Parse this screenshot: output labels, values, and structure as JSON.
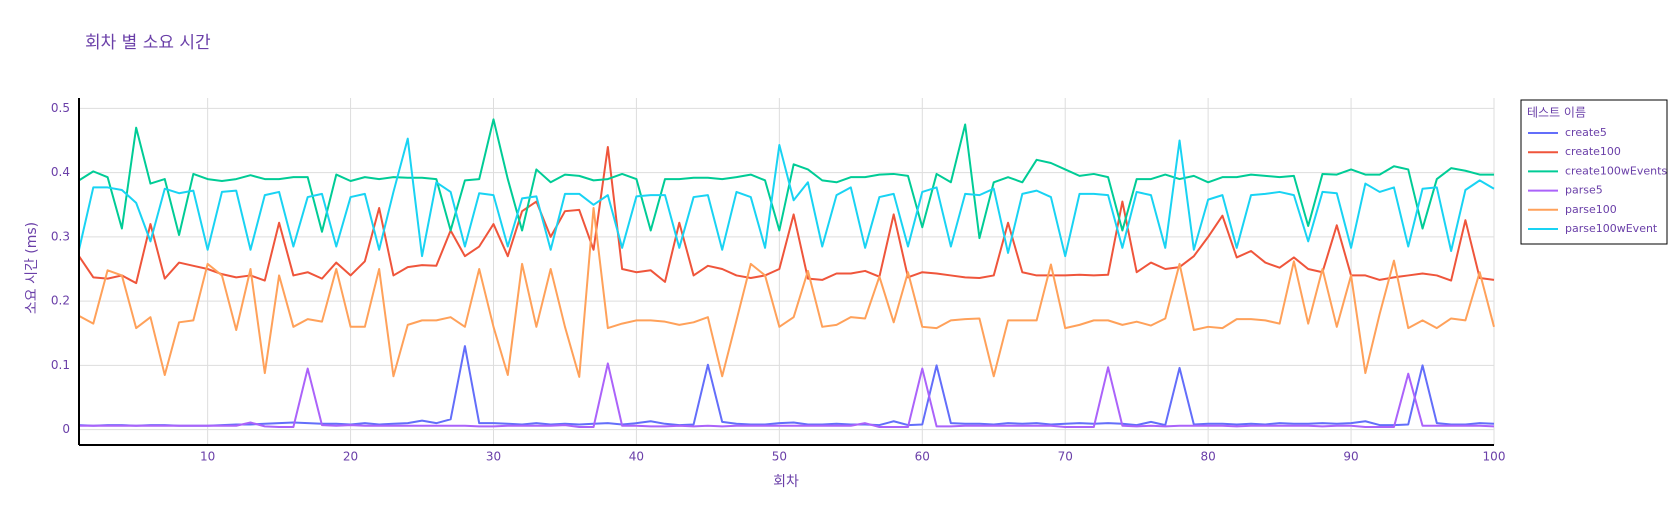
{
  "chart_data": {
    "type": "line",
    "title": "회차 별 소요 시간",
    "x_label": "회차",
    "y_label": "소요 시간 (ms)",
    "legend_title": "테스트 이름",
    "grid": true,
    "x": [
      1,
      2,
      3,
      4,
      5,
      6,
      7,
      8,
      9,
      10,
      11,
      12,
      13,
      14,
      15,
      16,
      17,
      18,
      19,
      20,
      21,
      22,
      23,
      24,
      25,
      26,
      27,
      28,
      29,
      30,
      31,
      32,
      33,
      34,
      35,
      36,
      37,
      38,
      39,
      40,
      41,
      42,
      43,
      44,
      45,
      46,
      47,
      48,
      49,
      50,
      51,
      52,
      53,
      54,
      55,
      56,
      57,
      58,
      59,
      60,
      61,
      62,
      63,
      64,
      65,
      66,
      67,
      68,
      69,
      70,
      71,
      72,
      73,
      74,
      75,
      76,
      77,
      78,
      79,
      80,
      81,
      82,
      83,
      84,
      85,
      86,
      87,
      88,
      89,
      90,
      91,
      92,
      93,
      94,
      95,
      96,
      97,
      98,
      99,
      100
    ],
    "xlim": [
      1,
      100
    ],
    "xticks": [
      10,
      20,
      30,
      40,
      50,
      60,
      70,
      80,
      90,
      100
    ],
    "ylim": [
      -0.024,
      0.51
    ],
    "yticks": [
      0,
      0.1,
      0.2,
      0.3,
      0.4,
      0.5
    ],
    "series": [
      {
        "name": "create5",
        "color": "#636efa",
        "values": [
          0.007,
          0.006,
          0.007,
          0.007,
          0.006,
          0.007,
          0.007,
          0.006,
          0.006,
          0.006,
          0.007,
          0.008,
          0.008,
          0.009,
          0.01,
          0.011,
          0.01,
          0.009,
          0.009,
          0.008,
          0.01,
          0.008,
          0.009,
          0.01,
          0.014,
          0.01,
          0.016,
          0.13,
          0.01,
          0.01,
          0.009,
          0.008,
          0.01,
          0.008,
          0.009,
          0.008,
          0.009,
          0.01,
          0.008,
          0.01,
          0.013,
          0.009,
          0.007,
          0.008,
          0.101,
          0.012,
          0.009,
          0.008,
          0.008,
          0.01,
          0.011,
          0.008,
          0.008,
          0.009,
          0.008,
          0.008,
          0.007,
          0.013,
          0.007,
          0.008,
          0.1,
          0.01,
          0.009,
          0.009,
          0.008,
          0.01,
          0.009,
          0.01,
          0.008,
          0.009,
          0.01,
          0.009,
          0.01,
          0.009,
          0.007,
          0.012,
          0.007,
          0.096,
          0.008,
          0.009,
          0.009,
          0.008,
          0.009,
          0.008,
          0.01,
          0.009,
          0.009,
          0.01,
          0.009,
          0.01,
          0.013,
          0.007,
          0.007,
          0.008,
          0.1,
          0.01,
          0.008,
          0.008,
          0.01,
          0.009
        ]
      },
      {
        "name": "create100",
        "color": "#EF553B",
        "values": [
          0.27,
          0.237,
          0.235,
          0.24,
          0.228,
          0.32,
          0.235,
          0.26,
          0.255,
          0.25,
          0.242,
          0.237,
          0.24,
          0.232,
          0.322,
          0.24,
          0.245,
          0.235,
          0.26,
          0.24,
          0.262,
          0.345,
          0.24,
          0.253,
          0.256,
          0.255,
          0.31,
          0.27,
          0.285,
          0.32,
          0.27,
          0.34,
          0.355,
          0.3,
          0.34,
          0.342,
          0.28,
          0.44,
          0.25,
          0.245,
          0.248,
          0.23,
          0.322,
          0.24,
          0.255,
          0.25,
          0.24,
          0.236,
          0.24,
          0.25,
          0.335,
          0.235,
          0.233,
          0.243,
          0.243,
          0.247,
          0.238,
          0.335,
          0.237,
          0.245,
          0.243,
          0.24,
          0.237,
          0.236,
          0.24,
          0.322,
          0.245,
          0.24,
          0.24,
          0.24,
          0.241,
          0.24,
          0.241,
          0.355,
          0.245,
          0.26,
          0.25,
          0.253,
          0.27,
          0.3,
          0.333,
          0.268,
          0.278,
          0.26,
          0.252,
          0.268,
          0.25,
          0.245,
          0.318,
          0.24,
          0.24,
          0.233,
          0.237,
          0.24,
          0.243,
          0.24,
          0.232,
          0.326,
          0.236,
          0.233
        ]
      },
      {
        "name": "create100wEvents",
        "color": "#00cc96",
        "values": [
          0.388,
          0.402,
          0.393,
          0.313,
          0.47,
          0.383,
          0.39,
          0.303,
          0.398,
          0.39,
          0.387,
          0.39,
          0.396,
          0.39,
          0.39,
          0.393,
          0.393,
          0.308,
          0.397,
          0.387,
          0.393,
          0.39,
          0.393,
          0.392,
          0.392,
          0.39,
          0.31,
          0.388,
          0.39,
          0.483,
          0.39,
          0.31,
          0.405,
          0.385,
          0.397,
          0.395,
          0.388,
          0.39,
          0.398,
          0.39,
          0.31,
          0.39,
          0.39,
          0.392,
          0.392,
          0.39,
          0.393,
          0.397,
          0.388,
          0.31,
          0.413,
          0.405,
          0.388,
          0.385,
          0.393,
          0.393,
          0.397,
          0.398,
          0.395,
          0.315,
          0.398,
          0.385,
          0.475,
          0.298,
          0.385,
          0.393,
          0.385,
          0.42,
          0.415,
          0.405,
          0.395,
          0.398,
          0.393,
          0.31,
          0.39,
          0.39,
          0.397,
          0.39,
          0.395,
          0.385,
          0.393,
          0.393,
          0.397,
          0.395,
          0.393,
          0.395,
          0.317,
          0.398,
          0.397,
          0.405,
          0.397,
          0.397,
          0.41,
          0.405,
          0.313,
          0.39,
          0.407,
          0.403,
          0.397,
          0.397
        ]
      },
      {
        "name": "parse5",
        "color": "#ab63fa",
        "values": [
          0.006,
          0.006,
          0.006,
          0.006,
          0.006,
          0.006,
          0.006,
          0.006,
          0.006,
          0.006,
          0.006,
          0.006,
          0.011,
          0.005,
          0.004,
          0.004,
          0.095,
          0.007,
          0.006,
          0.007,
          0.006,
          0.006,
          0.006,
          0.006,
          0.006,
          0.006,
          0.006,
          0.006,
          0.005,
          0.005,
          0.006,
          0.006,
          0.006,
          0.006,
          0.007,
          0.004,
          0.004,
          0.103,
          0.006,
          0.006,
          0.005,
          0.005,
          0.006,
          0.005,
          0.006,
          0.005,
          0.006,
          0.006,
          0.006,
          0.006,
          0.006,
          0.006,
          0.006,
          0.006,
          0.006,
          0.01,
          0.004,
          0.004,
          0.004,
          0.095,
          0.005,
          0.005,
          0.006,
          0.006,
          0.006,
          0.006,
          0.006,
          0.006,
          0.006,
          0.004,
          0.004,
          0.004,
          0.097,
          0.006,
          0.005,
          0.006,
          0.005,
          0.006,
          0.006,
          0.006,
          0.006,
          0.005,
          0.006,
          0.006,
          0.006,
          0.006,
          0.006,
          0.005,
          0.006,
          0.006,
          0.004,
          0.004,
          0.004,
          0.087,
          0.006,
          0.006,
          0.006,
          0.006,
          0.006,
          0.005
        ]
      },
      {
        "name": "parse100",
        "color": "#FFA15A",
        "values": [
          0.177,
          0.165,
          0.248,
          0.24,
          0.158,
          0.175,
          0.085,
          0.167,
          0.17,
          0.258,
          0.24,
          0.155,
          0.25,
          0.088,
          0.24,
          0.16,
          0.172,
          0.168,
          0.25,
          0.16,
          0.16,
          0.25,
          0.083,
          0.163,
          0.17,
          0.17,
          0.175,
          0.16,
          0.25,
          0.16,
          0.085,
          0.258,
          0.16,
          0.25,
          0.16,
          0.082,
          0.345,
          0.158,
          0.165,
          0.17,
          0.17,
          0.168,
          0.163,
          0.167,
          0.175,
          0.083,
          0.17,
          0.258,
          0.24,
          0.16,
          0.175,
          0.247,
          0.16,
          0.163,
          0.175,
          0.173,
          0.238,
          0.167,
          0.245,
          0.16,
          0.158,
          0.17,
          0.172,
          0.173,
          0.083,
          0.17,
          0.17,
          0.17,
          0.257,
          0.158,
          0.163,
          0.17,
          0.17,
          0.163,
          0.168,
          0.162,
          0.173,
          0.258,
          0.155,
          0.16,
          0.158,
          0.172,
          0.172,
          0.17,
          0.165,
          0.262,
          0.165,
          0.25,
          0.16,
          0.24,
          0.088,
          0.18,
          0.263,
          0.158,
          0.17,
          0.158,
          0.173,
          0.17,
          0.245,
          0.16
        ]
      },
      {
        "name": "parse100wEvent",
        "color": "#19d3f3",
        "values": [
          0.28,
          0.377,
          0.377,
          0.373,
          0.353,
          0.293,
          0.375,
          0.368,
          0.372,
          0.28,
          0.37,
          0.372,
          0.28,
          0.365,
          0.37,
          0.285,
          0.362,
          0.367,
          0.285,
          0.362,
          0.367,
          0.28,
          0.37,
          0.453,
          0.27,
          0.385,
          0.37,
          0.285,
          0.368,
          0.365,
          0.285,
          0.36,
          0.363,
          0.28,
          0.367,
          0.367,
          0.35,
          0.365,
          0.283,
          0.363,
          0.365,
          0.365,
          0.283,
          0.362,
          0.365,
          0.28,
          0.37,
          0.362,
          0.283,
          0.443,
          0.357,
          0.385,
          0.285,
          0.365,
          0.377,
          0.283,
          0.362,
          0.367,
          0.285,
          0.37,
          0.377,
          0.285,
          0.367,
          0.365,
          0.375,
          0.275,
          0.367,
          0.372,
          0.362,
          0.27,
          0.367,
          0.367,
          0.365,
          0.283,
          0.37,
          0.365,
          0.283,
          0.45,
          0.28,
          0.358,
          0.365,
          0.283,
          0.365,
          0.367,
          0.37,
          0.365,
          0.293,
          0.37,
          0.368,
          0.283,
          0.383,
          0.37,
          0.377,
          0.285,
          0.375,
          0.377,
          0.278,
          0.373,
          0.388,
          0.375
        ]
      }
    ]
  }
}
